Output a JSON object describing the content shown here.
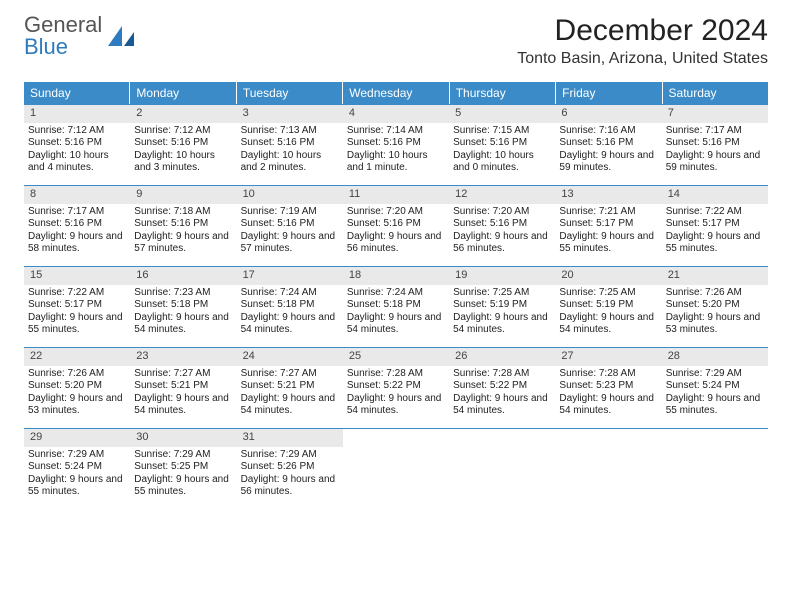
{
  "logo": {
    "text1": "General",
    "text2": "Blue"
  },
  "header": {
    "title": "December 2024",
    "subtitle": "Tonto Basin, Arizona, United States"
  },
  "colors": {
    "header_bg": "#3b8bc8",
    "header_text": "#ffffff",
    "daynum_bg": "#e9e9e9",
    "week_border": "#3b8bc8",
    "title_color": "#222222",
    "logo_blue": "#2f7bbf"
  },
  "days_of_week": [
    "Sunday",
    "Monday",
    "Tuesday",
    "Wednesday",
    "Thursday",
    "Friday",
    "Saturday"
  ],
  "weeks": [
    [
      {
        "n": "1",
        "sunrise": "Sunrise: 7:12 AM",
        "sunset": "Sunset: 5:16 PM",
        "daylight": "Daylight: 10 hours and 4 minutes."
      },
      {
        "n": "2",
        "sunrise": "Sunrise: 7:12 AM",
        "sunset": "Sunset: 5:16 PM",
        "daylight": "Daylight: 10 hours and 3 minutes."
      },
      {
        "n": "3",
        "sunrise": "Sunrise: 7:13 AM",
        "sunset": "Sunset: 5:16 PM",
        "daylight": "Daylight: 10 hours and 2 minutes."
      },
      {
        "n": "4",
        "sunrise": "Sunrise: 7:14 AM",
        "sunset": "Sunset: 5:16 PM",
        "daylight": "Daylight: 10 hours and 1 minute."
      },
      {
        "n": "5",
        "sunrise": "Sunrise: 7:15 AM",
        "sunset": "Sunset: 5:16 PM",
        "daylight": "Daylight: 10 hours and 0 minutes."
      },
      {
        "n": "6",
        "sunrise": "Sunrise: 7:16 AM",
        "sunset": "Sunset: 5:16 PM",
        "daylight": "Daylight: 9 hours and 59 minutes."
      },
      {
        "n": "7",
        "sunrise": "Sunrise: 7:17 AM",
        "sunset": "Sunset: 5:16 PM",
        "daylight": "Daylight: 9 hours and 59 minutes."
      }
    ],
    [
      {
        "n": "8",
        "sunrise": "Sunrise: 7:17 AM",
        "sunset": "Sunset: 5:16 PM",
        "daylight": "Daylight: 9 hours and 58 minutes."
      },
      {
        "n": "9",
        "sunrise": "Sunrise: 7:18 AM",
        "sunset": "Sunset: 5:16 PM",
        "daylight": "Daylight: 9 hours and 57 minutes."
      },
      {
        "n": "10",
        "sunrise": "Sunrise: 7:19 AM",
        "sunset": "Sunset: 5:16 PM",
        "daylight": "Daylight: 9 hours and 57 minutes."
      },
      {
        "n": "11",
        "sunrise": "Sunrise: 7:20 AM",
        "sunset": "Sunset: 5:16 PM",
        "daylight": "Daylight: 9 hours and 56 minutes."
      },
      {
        "n": "12",
        "sunrise": "Sunrise: 7:20 AM",
        "sunset": "Sunset: 5:16 PM",
        "daylight": "Daylight: 9 hours and 56 minutes."
      },
      {
        "n": "13",
        "sunrise": "Sunrise: 7:21 AM",
        "sunset": "Sunset: 5:17 PM",
        "daylight": "Daylight: 9 hours and 55 minutes."
      },
      {
        "n": "14",
        "sunrise": "Sunrise: 7:22 AM",
        "sunset": "Sunset: 5:17 PM",
        "daylight": "Daylight: 9 hours and 55 minutes."
      }
    ],
    [
      {
        "n": "15",
        "sunrise": "Sunrise: 7:22 AM",
        "sunset": "Sunset: 5:17 PM",
        "daylight": "Daylight: 9 hours and 55 minutes."
      },
      {
        "n": "16",
        "sunrise": "Sunrise: 7:23 AM",
        "sunset": "Sunset: 5:18 PM",
        "daylight": "Daylight: 9 hours and 54 minutes."
      },
      {
        "n": "17",
        "sunrise": "Sunrise: 7:24 AM",
        "sunset": "Sunset: 5:18 PM",
        "daylight": "Daylight: 9 hours and 54 minutes."
      },
      {
        "n": "18",
        "sunrise": "Sunrise: 7:24 AM",
        "sunset": "Sunset: 5:18 PM",
        "daylight": "Daylight: 9 hours and 54 minutes."
      },
      {
        "n": "19",
        "sunrise": "Sunrise: 7:25 AM",
        "sunset": "Sunset: 5:19 PM",
        "daylight": "Daylight: 9 hours and 54 minutes."
      },
      {
        "n": "20",
        "sunrise": "Sunrise: 7:25 AM",
        "sunset": "Sunset: 5:19 PM",
        "daylight": "Daylight: 9 hours and 54 minutes."
      },
      {
        "n": "21",
        "sunrise": "Sunrise: 7:26 AM",
        "sunset": "Sunset: 5:20 PM",
        "daylight": "Daylight: 9 hours and 53 minutes."
      }
    ],
    [
      {
        "n": "22",
        "sunrise": "Sunrise: 7:26 AM",
        "sunset": "Sunset: 5:20 PM",
        "daylight": "Daylight: 9 hours and 53 minutes."
      },
      {
        "n": "23",
        "sunrise": "Sunrise: 7:27 AM",
        "sunset": "Sunset: 5:21 PM",
        "daylight": "Daylight: 9 hours and 54 minutes."
      },
      {
        "n": "24",
        "sunrise": "Sunrise: 7:27 AM",
        "sunset": "Sunset: 5:21 PM",
        "daylight": "Daylight: 9 hours and 54 minutes."
      },
      {
        "n": "25",
        "sunrise": "Sunrise: 7:28 AM",
        "sunset": "Sunset: 5:22 PM",
        "daylight": "Daylight: 9 hours and 54 minutes."
      },
      {
        "n": "26",
        "sunrise": "Sunrise: 7:28 AM",
        "sunset": "Sunset: 5:22 PM",
        "daylight": "Daylight: 9 hours and 54 minutes."
      },
      {
        "n": "27",
        "sunrise": "Sunrise: 7:28 AM",
        "sunset": "Sunset: 5:23 PM",
        "daylight": "Daylight: 9 hours and 54 minutes."
      },
      {
        "n": "28",
        "sunrise": "Sunrise: 7:29 AM",
        "sunset": "Sunset: 5:24 PM",
        "daylight": "Daylight: 9 hours and 55 minutes."
      }
    ],
    [
      {
        "n": "29",
        "sunrise": "Sunrise: 7:29 AM",
        "sunset": "Sunset: 5:24 PM",
        "daylight": "Daylight: 9 hours and 55 minutes."
      },
      {
        "n": "30",
        "sunrise": "Sunrise: 7:29 AM",
        "sunset": "Sunset: 5:25 PM",
        "daylight": "Daylight: 9 hours and 55 minutes."
      },
      {
        "n": "31",
        "sunrise": "Sunrise: 7:29 AM",
        "sunset": "Sunset: 5:26 PM",
        "daylight": "Daylight: 9 hours and 56 minutes."
      },
      null,
      null,
      null,
      null
    ]
  ]
}
